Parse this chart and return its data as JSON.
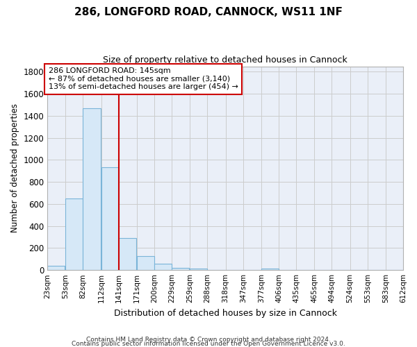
{
  "title1": "286, LONGFORD ROAD, CANNOCK, WS11 1NF",
  "title2": "Size of property relative to detached houses in Cannock",
  "xlabel": "Distribution of detached houses by size in Cannock",
  "ylabel": "Number of detached properties",
  "footer1": "Contains HM Land Registry data © Crown copyright and database right 2024.",
  "footer2": "Contains public sector information licensed under the Open Government Licence v3.0.",
  "annotation_line1": "286 LONGFORD ROAD: 145sqm",
  "annotation_line2": "← 87% of detached houses are smaller (3,140)",
  "annotation_line3": "13% of semi-detached houses are larger (454) →",
  "bar_left_edges": [
    23,
    53,
    82,
    112,
    141,
    171,
    200,
    229,
    259,
    288,
    318,
    347,
    377,
    406,
    435,
    465,
    494,
    524,
    553,
    583
  ],
  "bar_heights": [
    40,
    650,
    1470,
    935,
    290,
    125,
    60,
    22,
    12,
    0,
    0,
    0,
    12,
    0,
    0,
    0,
    0,
    0,
    0,
    0
  ],
  "bin_width": 29,
  "bar_facecolor": "#d6e8f7",
  "bar_edgecolor": "#7ab4d8",
  "vline_color": "#cc0000",
  "vline_x": 141,
  "annotation_box_edgecolor": "#cc0000",
  "annotation_box_facecolor": "#ffffff",
  "grid_color": "#cccccc",
  "background_color": "#eaeff8",
  "ylim": [
    0,
    1850
  ],
  "yticks": [
    0,
    200,
    400,
    600,
    800,
    1000,
    1200,
    1400,
    1600,
    1800
  ],
  "tick_labels": [
    "23sqm",
    "53sqm",
    "82sqm",
    "112sqm",
    "141sqm",
    "171sqm",
    "200sqm",
    "229sqm",
    "259sqm",
    "288sqm",
    "318sqm",
    "347sqm",
    "377sqm",
    "406sqm",
    "435sqm",
    "465sqm",
    "494sqm",
    "524sqm",
    "553sqm",
    "583sqm",
    "612sqm"
  ],
  "figwidth": 6.0,
  "figheight": 5.0,
  "dpi": 100
}
